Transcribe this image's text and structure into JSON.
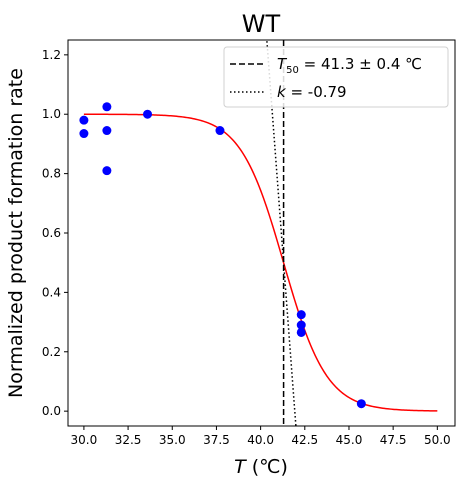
{
  "chart_data": {
    "type": "scatter",
    "title": "WT",
    "xlabel_var": "T",
    "xlabel_unit": " (℃)",
    "ylabel": "Normalized product formation rate",
    "xlim": [
      29.1,
      51.0
    ],
    "ylim": [
      -0.05,
      1.25
    ],
    "xticks": [
      "30.0",
      "32.5",
      "35.0",
      "37.5",
      "40.0",
      "42.5",
      "45.0",
      "47.5",
      "50.0"
    ],
    "xtick_values": [
      30.0,
      32.5,
      35.0,
      37.5,
      40.0,
      42.5,
      45.0,
      47.5,
      50.0
    ],
    "yticks": [
      "0.0",
      "0.2",
      "0.4",
      "0.6",
      "0.8",
      "1.0",
      "1.2"
    ],
    "ytick_values": [
      0.0,
      0.2,
      0.4,
      0.6,
      0.8,
      1.0,
      1.2
    ],
    "points": {
      "x": [
        30.0,
        30.0,
        31.3,
        31.3,
        31.3,
        33.6,
        37.7,
        42.3,
        42.3,
        42.3,
        45.7
      ],
      "y": [
        0.98,
        0.935,
        1.025,
        0.945,
        0.81,
        1.0,
        0.945,
        0.325,
        0.29,
        0.265,
        0.025
      ],
      "color": "#0000ff"
    },
    "fit_curve": {
      "color": "#ff0000",
      "x_range": [
        30.0,
        50.0
      ],
      "T50": 41.3,
      "width": 1.22
    },
    "t50_line": {
      "x": 41.3,
      "color": "#000000",
      "style": "dashed"
    },
    "slope_line": {
      "k": -0.79,
      "x0": 41.3,
      "y0": 0.5,
      "color": "#000000",
      "style": "dotted"
    },
    "legend": {
      "position": "top-right",
      "entries": [
        {
          "var": "T",
          "sub": "50",
          "text": " = 41.3 ± 0.4 ℃",
          "style": "dashed"
        },
        {
          "var": "k",
          "sub": "",
          "text": " = -0.79",
          "style": "dotted"
        }
      ]
    },
    "grid": false
  }
}
